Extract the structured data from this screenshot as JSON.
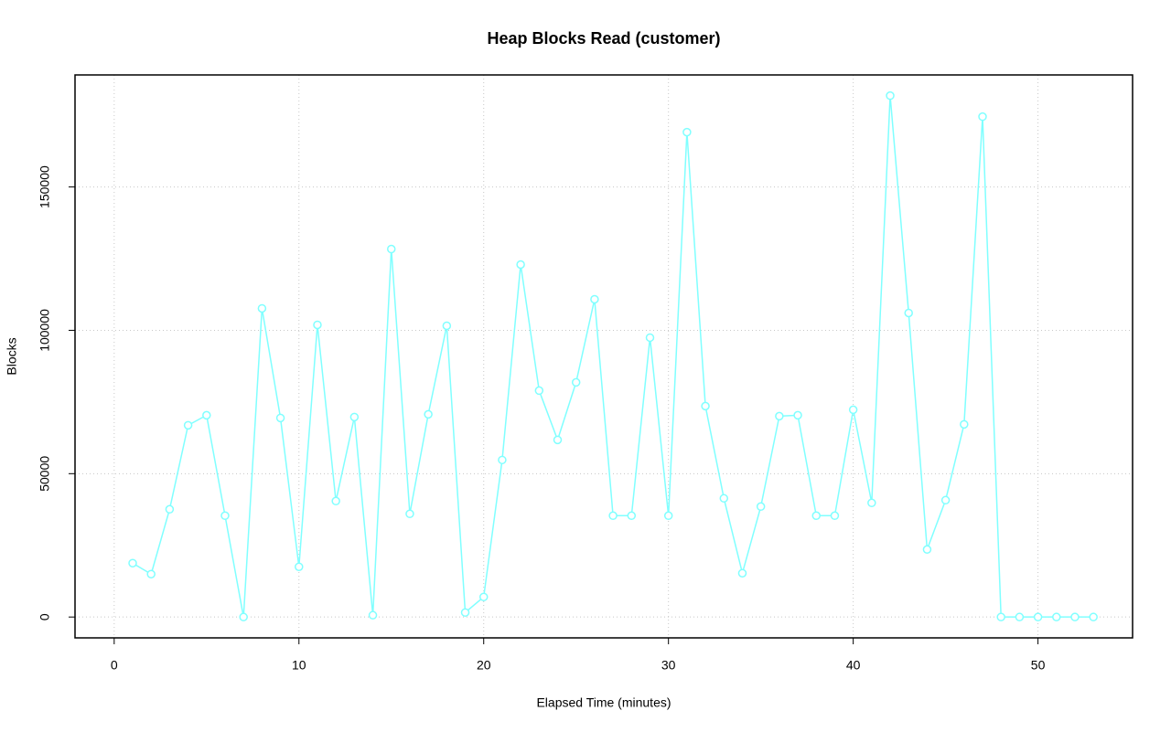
{
  "chart_data": {
    "type": "line",
    "title": "Heap Blocks Read (customer)",
    "x_label": "Elapsed Time (minutes)",
    "y_label": "Blocks",
    "x": [
      1,
      2,
      3,
      4,
      5,
      6,
      7,
      8,
      9,
      10,
      11,
      12,
      13,
      14,
      15,
      16,
      17,
      18,
      19,
      20,
      21,
      22,
      23,
      24,
      25,
      26,
      27,
      28,
      29,
      30,
      31,
      32,
      33,
      34,
      35,
      36,
      37,
      38,
      39,
      40,
      41,
      42,
      43,
      44,
      45,
      46,
      47,
      48,
      49,
      50,
      51,
      52,
      53
    ],
    "values": [
      18790,
      14970,
      37580,
      66880,
      70380,
      35350,
      0,
      107640,
      69430,
      17520,
      101910,
      40450,
      69750,
      640,
      128340,
      35990,
      70700,
      101590,
      1590,
      7010,
      54780,
      122930,
      78980,
      61780,
      81850,
      110830,
      35350,
      35350,
      97450,
      35350,
      169110,
      73570,
      41400,
      15290,
      38540,
      70060,
      70380,
      35350,
      35350,
      72290,
      39810,
      181850,
      106050,
      23570,
      40760,
      67200,
      174520,
      0,
      0,
      0,
      0,
      0,
      0
    ],
    "color": "#80ffff",
    "xlim": [
      -2.12,
      55.12
    ],
    "ylim": [
      -7272,
      189072
    ],
    "xticks": [
      0,
      10,
      20,
      30,
      40,
      50
    ],
    "yticks": [
      0,
      50000,
      100000,
      150000
    ],
    "grid": true
  }
}
